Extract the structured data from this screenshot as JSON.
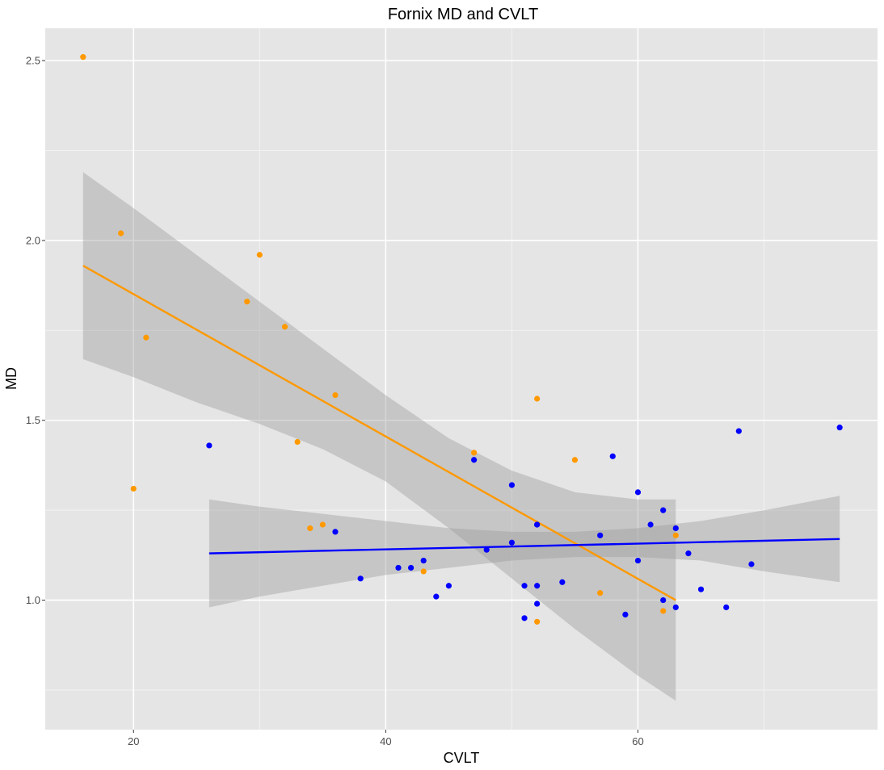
{
  "chart_data": {
    "type": "scatter",
    "title": "Fornix MD and CVLT",
    "xlabel": "CVLT",
    "ylabel": "MD",
    "xlim": [
      13,
      79
    ],
    "ylim": [
      0.64,
      2.59
    ],
    "x_ticks": [
      20,
      40,
      60
    ],
    "x_tick_labels": [
      "20",
      "40",
      "60"
    ],
    "y_ticks": [
      1.0,
      1.5,
      2.0,
      2.5
    ],
    "y_tick_labels": [
      "1.0",
      "1.5",
      "2.0",
      "2.5"
    ],
    "grid": true,
    "background": "#e5e5e5",
    "grid_color": "#ffffff",
    "ribbon_color": "#999999",
    "series": [
      {
        "color": "#ff9900",
        "points": [
          [
            16,
            2.51
          ],
          [
            19,
            2.02
          ],
          [
            20,
            1.31
          ],
          [
            21,
            1.73
          ],
          [
            29,
            1.83
          ],
          [
            30,
            1.96
          ],
          [
            32,
            1.76
          ],
          [
            33,
            1.44
          ],
          [
            34,
            1.2
          ],
          [
            35,
            1.21
          ],
          [
            36,
            1.57
          ],
          [
            43,
            1.08
          ],
          [
            47,
            1.41
          ],
          [
            52,
            1.56
          ],
          [
            52,
            0.94
          ],
          [
            55,
            1.39
          ],
          [
            57,
            1.02
          ],
          [
            62,
            0.97
          ],
          [
            63,
            1.18
          ]
        ],
        "fit": {
          "x": [
            16,
            63
          ],
          "y": [
            1.93,
            1.0
          ]
        },
        "ribbon": {
          "x": [
            16,
            20,
            25,
            30,
            35,
            40,
            45,
            50,
            55,
            60,
            63
          ],
          "upper": [
            2.19,
            2.09,
            1.96,
            1.83,
            1.7,
            1.57,
            1.45,
            1.36,
            1.3,
            1.28,
            1.28
          ],
          "lower": [
            1.67,
            1.62,
            1.55,
            1.49,
            1.42,
            1.33,
            1.2,
            1.06,
            0.92,
            0.79,
            0.72
          ]
        }
      },
      {
        "color": "#0000ff",
        "points": [
          [
            26,
            1.43
          ],
          [
            36,
            1.19
          ],
          [
            38,
            1.06
          ],
          [
            41,
            1.09
          ],
          [
            42,
            1.09
          ],
          [
            43,
            1.11
          ],
          [
            44,
            1.01
          ],
          [
            45,
            1.04
          ],
          [
            47,
            1.39
          ],
          [
            48,
            1.14
          ],
          [
            50,
            1.32
          ],
          [
            50,
            1.16
          ],
          [
            51,
            1.04
          ],
          [
            51,
            0.95
          ],
          [
            52,
            1.21
          ],
          [
            52,
            1.04
          ],
          [
            52,
            0.99
          ],
          [
            52,
            1.21
          ],
          [
            54,
            1.05
          ],
          [
            57,
            1.18
          ],
          [
            58,
            1.4
          ],
          [
            59,
            0.96
          ],
          [
            60,
            1.3
          ],
          [
            60,
            1.11
          ],
          [
            61,
            1.21
          ],
          [
            62,
            1.25
          ],
          [
            62,
            1.0
          ],
          [
            63,
            1.2
          ],
          [
            63,
            0.98
          ],
          [
            64,
            1.13
          ],
          [
            65,
            1.03
          ],
          [
            67,
            0.98
          ],
          [
            68,
            1.47
          ],
          [
            69,
            1.1
          ],
          [
            76,
            1.48
          ]
        ],
        "fit": {
          "x": [
            26,
            76
          ],
          "y": [
            1.13,
            1.17
          ]
        },
        "ribbon": {
          "x": [
            26,
            30,
            35,
            40,
            45,
            50,
            55,
            60,
            65,
            70,
            76
          ],
          "upper": [
            1.28,
            1.26,
            1.24,
            1.22,
            1.2,
            1.19,
            1.19,
            1.2,
            1.22,
            1.25,
            1.29
          ],
          "lower": [
            0.98,
            1.01,
            1.04,
            1.07,
            1.09,
            1.11,
            1.12,
            1.12,
            1.11,
            1.08,
            1.05
          ]
        }
      }
    ]
  }
}
